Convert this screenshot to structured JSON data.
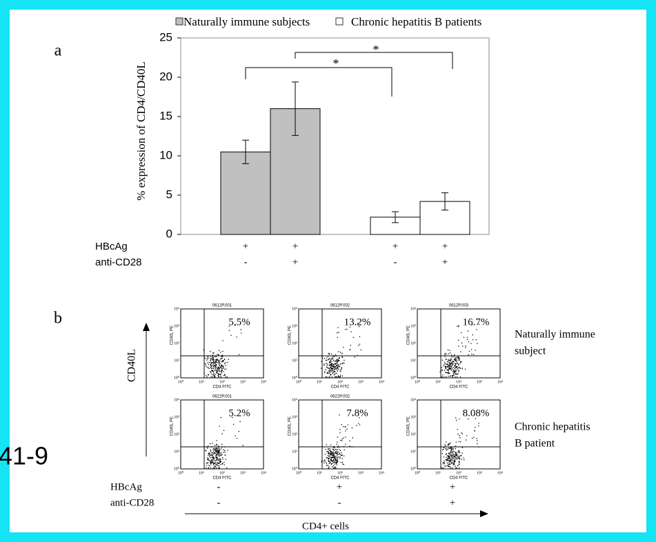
{
  "chart_data": {
    "type": "bar",
    "panel_label": "a",
    "ylabel": "% expression of CD4/CD40L",
    "categories": [
      null,
      null,
      null,
      null
    ],
    "series": [
      {
        "name": "Naturally immune subjects",
        "color": "#c0c0c0",
        "values": [
          10.5,
          16,
          null,
          null
        ],
        "errors": [
          1.5,
          3.4,
          null,
          null
        ]
      },
      {
        "name": "Chronic  hepatitis B patients",
        "color": "#ffffff",
        "values": [
          null,
          null,
          2.2,
          4.2
        ],
        "errors": [
          null,
          null,
          0.7,
          1.1
        ]
      }
    ],
    "ylim": [
      0,
      25
    ],
    "yticks": [
      0,
      5,
      10,
      15,
      20,
      25
    ],
    "conditions": [
      {
        "label": "HBcAg",
        "values": [
          "+",
          "+",
          "+",
          "+"
        ]
      },
      {
        "label": "anti-CD28",
        "values": [
          "-",
          "+",
          "-",
          "+"
        ]
      }
    ],
    "annotations": [
      "*",
      "*"
    ]
  },
  "panel_b": {
    "panel_label": "b",
    "y_axis": "CD40L",
    "x_axis": "CD4+ cells",
    "flow_axis": {
      "ticks": [
        "10⁰",
        "10¹",
        "10²",
        "10³",
        "10⁴"
      ],
      "x_label": "CD4 FITC",
      "y_label": "CD40L PE"
    },
    "rows": [
      {
        "label": [
          "Naturally immune",
          "subject"
        ],
        "plots": [
          {
            "id": "0612P.001",
            "percent": "5.5%"
          },
          {
            "id": "0612P.002",
            "percent": "13.2%"
          },
          {
            "id": "0612P.003",
            "percent": "16.7%"
          }
        ]
      },
      {
        "label": [
          "Chronic hepatitis",
          "B patient"
        ],
        "plots": [
          {
            "id": "0622P.001",
            "percent": "5.2%"
          },
          {
            "id": "0622P.002",
            "percent": "7.8%"
          },
          {
            "percent": "8.08%"
          }
        ]
      }
    ],
    "conditions": [
      {
        "label": "HBcAg",
        "values": [
          "-",
          "+",
          "+"
        ]
      },
      {
        "label": "anti-CD28",
        "values": [
          "-",
          "-",
          "+"
        ]
      }
    ]
  },
  "slide_number": "41-9"
}
